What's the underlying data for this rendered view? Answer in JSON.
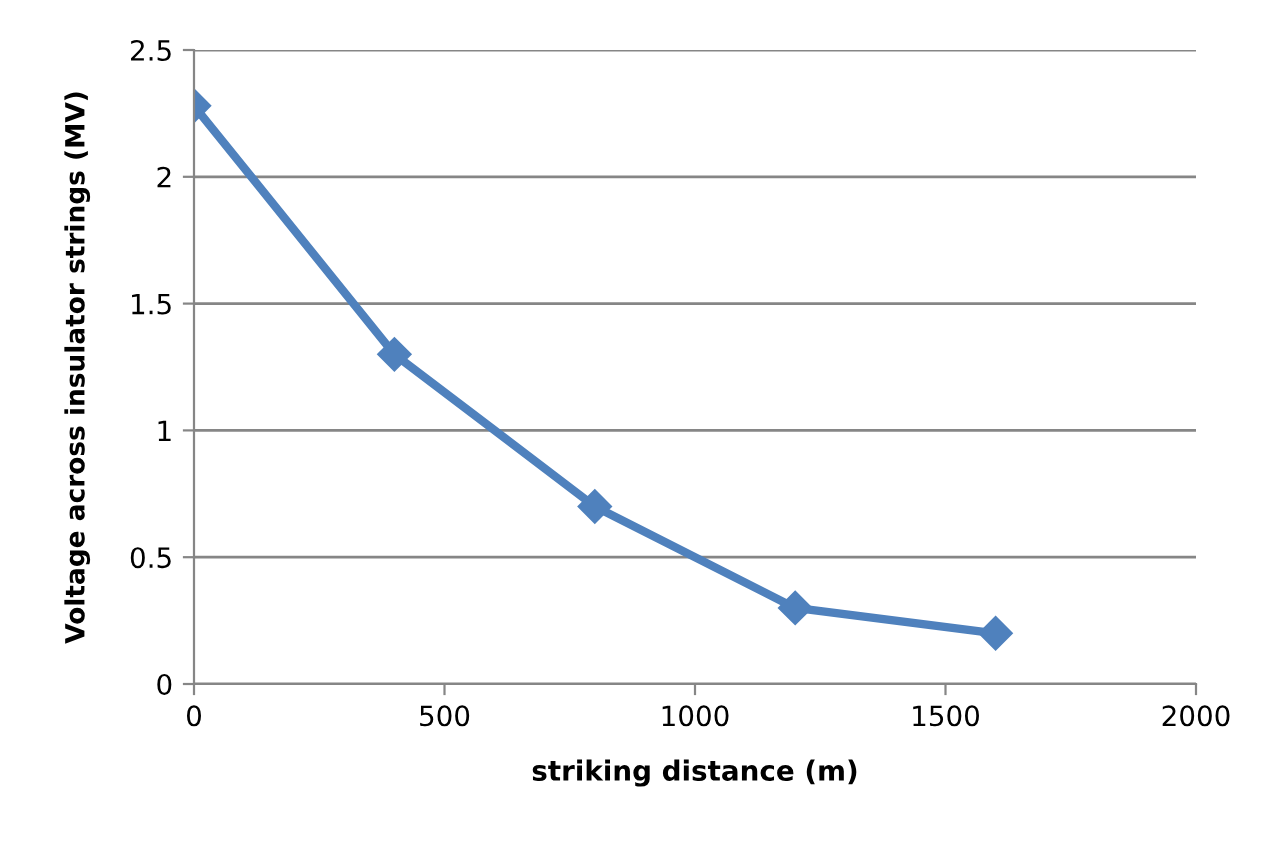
{
  "chart_data": {
    "type": "line",
    "xlabel": "striking distance (m)",
    "ylabel": "Voltage across insulator strings (MV)",
    "x": [
      0,
      400,
      800,
      1200,
      1600
    ],
    "series": [
      {
        "color": "#4f81bd",
        "values": [
          2.28,
          1.3,
          0.7,
          0.3,
          0.2
        ]
      }
    ],
    "xlim": [
      0,
      2000
    ],
    "xticks": [
      0,
      500,
      1000,
      1500,
      2000
    ],
    "ylim": [
      0,
      2.5
    ],
    "yticks": [
      0,
      0.5,
      1,
      1.5,
      2,
      2.5
    ],
    "grid": "y",
    "marker": "diamond",
    "line_style": "solid",
    "legend": false
  }
}
